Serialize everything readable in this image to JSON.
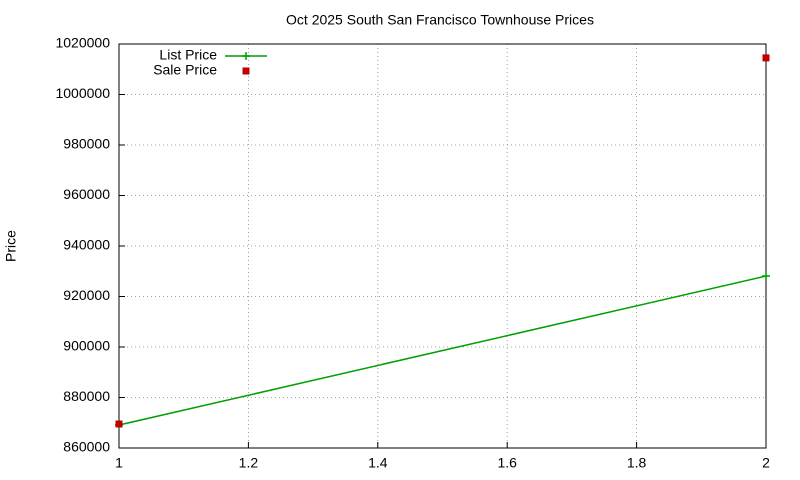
{
  "chart_data": {
    "type": "line",
    "title": "Oct 2025 South San Francisco Townhouse Prices",
    "y_label": "Price",
    "x": [
      1,
      2
    ],
    "series": [
      {
        "name": "List Price",
        "color": "#009e00",
        "mode": "linespoints",
        "values": [
          869100,
          928100
        ]
      },
      {
        "name": "Sale Price",
        "color": "#c00000",
        "mode": "points",
        "values": [
          869500,
          1014500
        ]
      }
    ],
    "xlim": [
      1,
      2
    ],
    "xticks": [
      1,
      1.2,
      1.4,
      1.6,
      1.8,
      2
    ],
    "ylim": [
      860000,
      1020000
    ],
    "yticks": [
      860000,
      880000,
      900000,
      920000,
      940000,
      960000,
      980000,
      1000000,
      1020000
    ],
    "grid": true,
    "legend": "top-left"
  }
}
